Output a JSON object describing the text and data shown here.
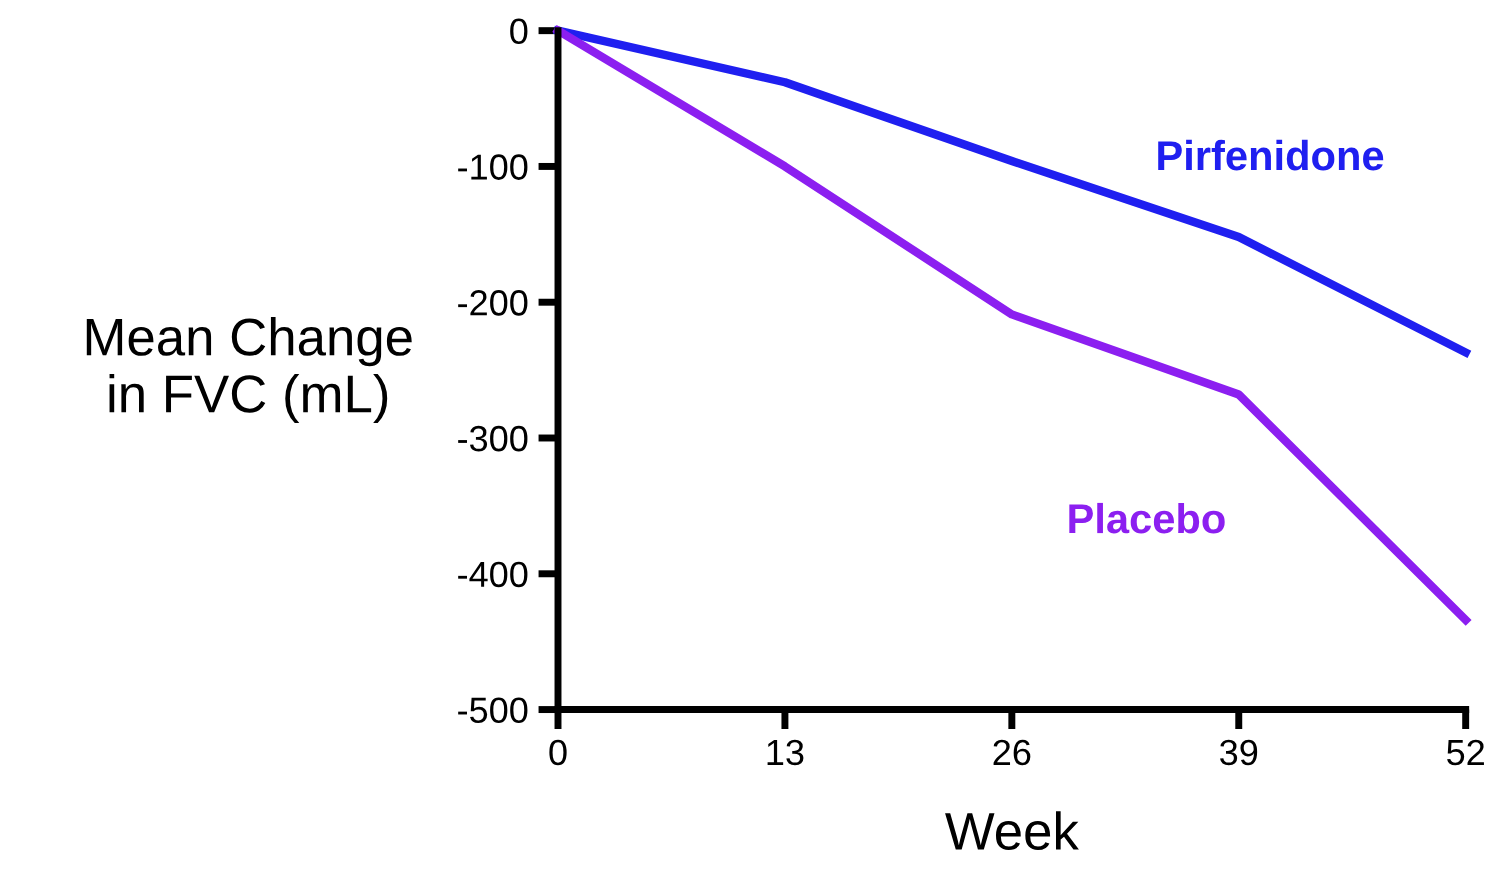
{
  "chart_data": {
    "type": "line",
    "xlabel": "Week",
    "ylabel": "Mean Change\nin FVC (mL)",
    "x": [
      0,
      13,
      26,
      39,
      52
    ],
    "series": [
      {
        "name": "Pirfenidone",
        "color": "#1f1ff0",
        "values": [
          0,
          -38,
          -96,
          -152,
          -237
        ]
      },
      {
        "name": "Placebo",
        "color": "#8c1ff0",
        "values": [
          0,
          -100,
          -209,
          -268,
          -434
        ]
      }
    ],
    "xlim": [
      0,
      52
    ],
    "xticks": [
      0,
      13,
      26,
      39,
      52
    ],
    "ylim": [
      -500,
      0
    ],
    "yticks": [
      -500,
      -400,
      -300,
      -200,
      -100,
      0
    ],
    "grid": false,
    "legend": false,
    "marker": "none",
    "line_style": "solid"
  }
}
